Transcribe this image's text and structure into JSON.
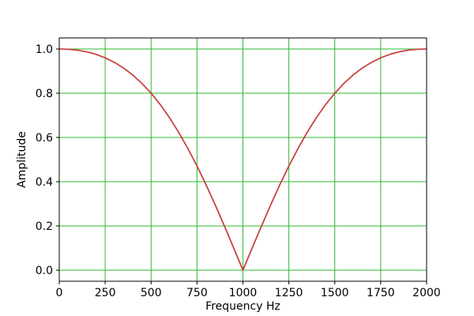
{
  "chart_data": {
    "type": "line",
    "xlabel": "Frequency Hz",
    "ylabel": "Amplitude",
    "xlim": [
      0,
      2000
    ],
    "ylim": [
      -0.05,
      1.05
    ],
    "x_ticks": [
      0,
      250,
      500,
      750,
      1000,
      1250,
      1500,
      1750,
      2000
    ],
    "x_tick_labels": [
      "0",
      "250",
      "500",
      "750",
      "1000",
      "1250",
      "1500",
      "1750",
      "2000"
    ],
    "y_ticks": [
      0.0,
      0.2,
      0.4,
      0.6,
      0.8,
      1.0
    ],
    "y_tick_labels": [
      "0.0",
      "0.2",
      "0.4",
      "0.6",
      "0.8",
      "1.0"
    ],
    "grid": true,
    "legend": false,
    "notch_frequency_hz": 1000,
    "series": [
      {
        "x": [
          0,
          50,
          100,
          150,
          200,
          250,
          300,
          350,
          400,
          450,
          500,
          550,
          600,
          650,
          700,
          750,
          800,
          850,
          900,
          950,
          1000,
          1050,
          1100,
          1150,
          1200,
          1250,
          1300,
          1350,
          1400,
          1450,
          1500,
          1550,
          1600,
          1650,
          1700,
          1750,
          1800,
          1850,
          1900,
          1950,
          2000
        ],
        "y": [
          1.0,
          0.9987,
          0.9945,
          0.987,
          0.9756,
          0.96,
          0.9396,
          0.9139,
          0.8824,
          0.8445,
          0.8,
          0.7484,
          0.6897,
          0.6236,
          0.5505,
          0.4706,
          0.3846,
          0.2934,
          0.198,
          0.0998,
          0.0,
          0.0998,
          0.198,
          0.2934,
          0.3846,
          0.4706,
          0.5505,
          0.6236,
          0.6897,
          0.7484,
          0.8,
          0.8445,
          0.8824,
          0.9139,
          0.9396,
          0.96,
          0.9756,
          0.987,
          0.9945,
          0.9987,
          1.0
        ]
      }
    ],
    "colors": {
      "line": "#c84444",
      "grid": "#2eb82e",
      "frame": "#000000",
      "text": "#000000",
      "background": "#ffffff"
    }
  }
}
